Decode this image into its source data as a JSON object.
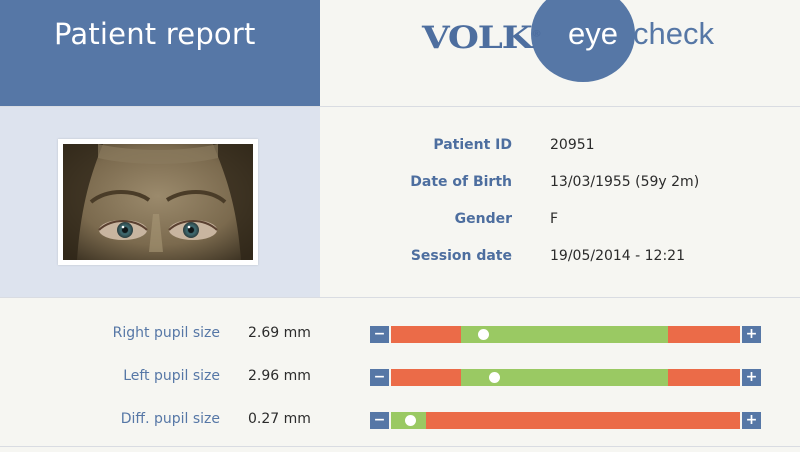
{
  "header": {
    "title": "Patient report",
    "logo_brand": "VOLK",
    "logo_reg": "®",
    "logo_eye": "eye",
    "logo_check": "check"
  },
  "patient": {
    "fields": [
      {
        "label": "Patient ID",
        "value": "20951"
      },
      {
        "label": "Date of Birth",
        "value": "13/03/1955 (59y 2m)"
      },
      {
        "label": "Gender",
        "value": "F"
      },
      {
        "label": "Session date",
        "value": "19/05/2014 - 12:21"
      }
    ]
  },
  "measurements": [
    {
      "label": "Right pupil size",
      "value": "2.69 mm",
      "green_start": 0.2,
      "green_end": 0.795,
      "marker": 0.264
    },
    {
      "label": "Left pupil size",
      "value": "2.96 mm",
      "green_start": 0.2,
      "green_end": 0.795,
      "marker": 0.295
    },
    {
      "label": "Diff. pupil size",
      "value": "0.27 mm",
      "green_start": 0.0,
      "green_end": 0.1,
      "marker": 0.055
    }
  ],
  "controls": {
    "minus": "−",
    "plus": "+"
  },
  "colors": {
    "accent": "#5677a6",
    "bar_red": "#eb6b48",
    "bar_green": "#9ac963",
    "panel_light": "#dde3ee"
  }
}
